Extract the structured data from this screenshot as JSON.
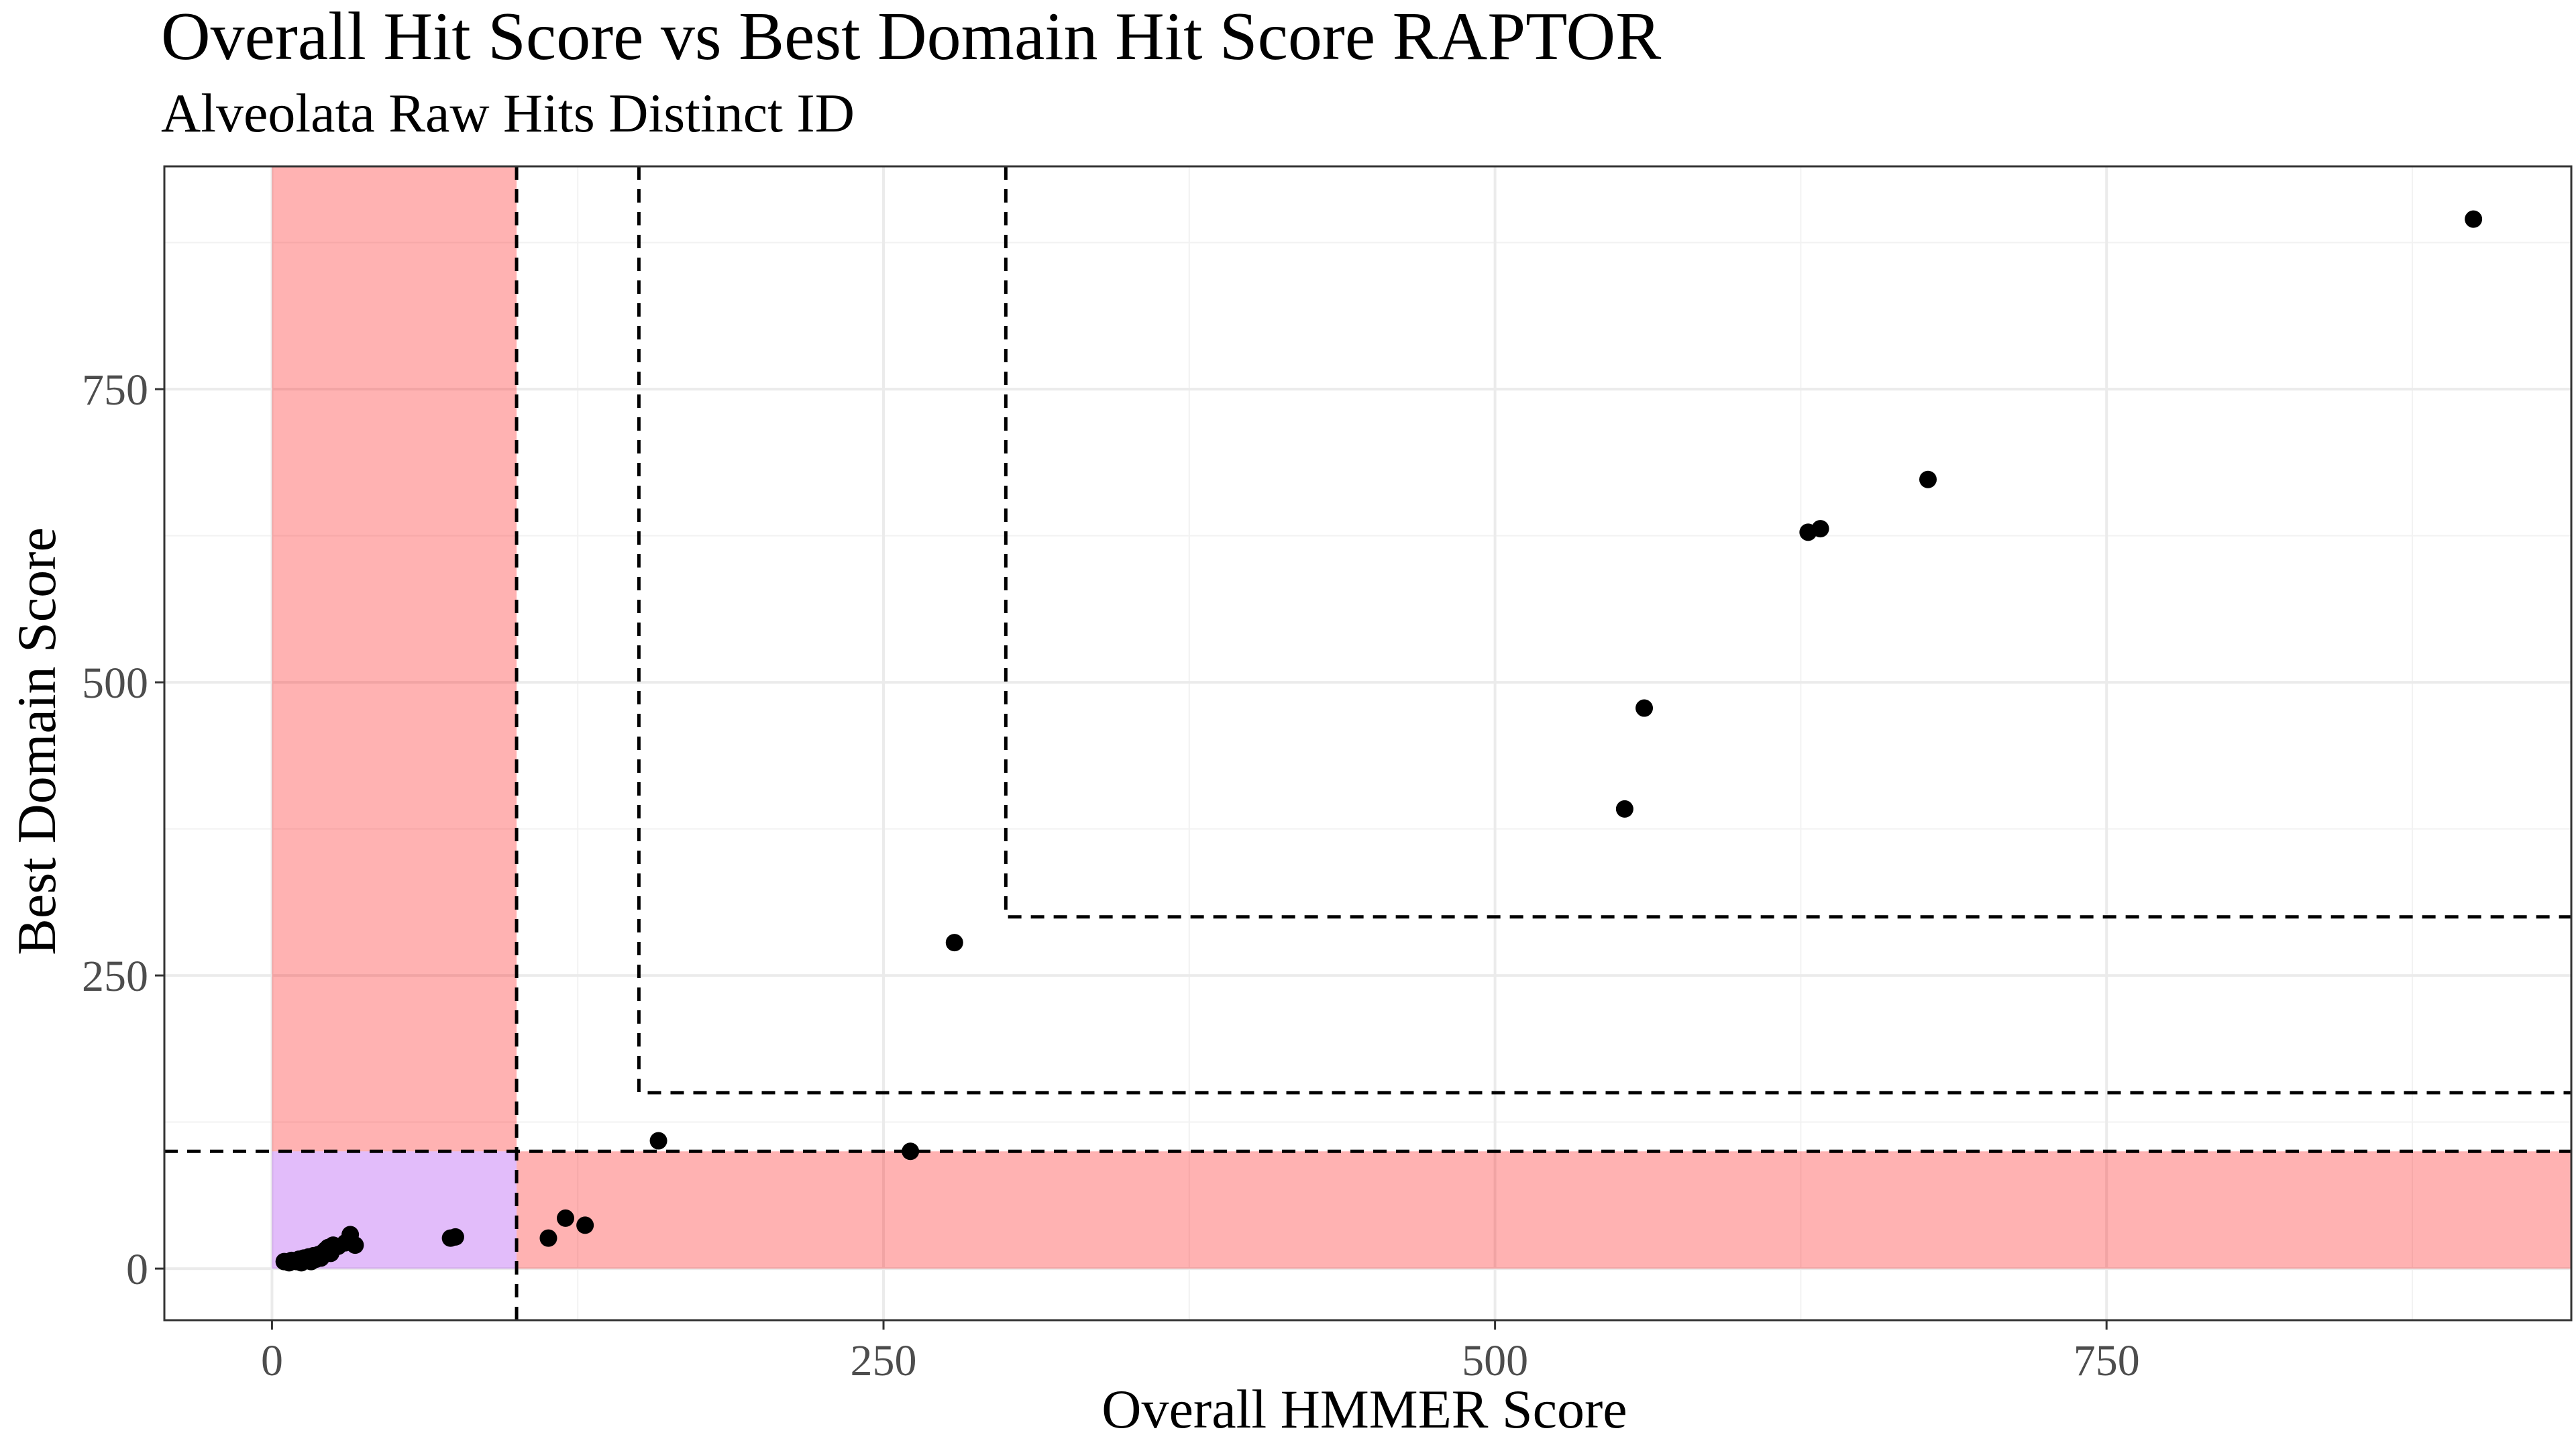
{
  "chart_data": {
    "type": "scatter",
    "title": "Overall Hit Score vs Best Domain Hit Score RAPTOR",
    "subtitle": "Alveolata Raw Hits Distinct ID",
    "xlabel": "Overall HMMER Score",
    "ylabel": "Best Domain Score",
    "xlim": [
      -44,
      940
    ],
    "ylim": [
      -44,
      940
    ],
    "x_ticks": [
      0,
      250,
      500,
      750
    ],
    "y_ticks": [
      0,
      250,
      500,
      750
    ],
    "x_tick_labels": [
      "0",
      "250",
      "500",
      "750"
    ],
    "y_tick_labels": [
      "0",
      "250",
      "500",
      "750"
    ],
    "grid": true,
    "point_color": "#000000",
    "shaded_regions": [
      {
        "x": [
          0,
          100
        ],
        "y": [
          100,
          940
        ],
        "color": "#ff0000",
        "opacity": 0.3
      },
      {
        "x": [
          100,
          940
        ],
        "y": [
          0,
          100
        ],
        "color": "#ff0000",
        "opacity": 0.3
      },
      {
        "x": [
          0,
          100
        ],
        "y": [
          0,
          100
        ],
        "color": "#a020f0",
        "opacity": 0.3
      }
    ],
    "threshold_lines": [
      {
        "type": "vertical",
        "x": 100,
        "style": "dashed"
      },
      {
        "type": "horizontal",
        "y": 100,
        "style": "dashed"
      },
      {
        "type": "corner",
        "x": 150,
        "y": 150,
        "style": "dashed"
      },
      {
        "type": "corner",
        "x": 300,
        "y": 300,
        "style": "dashed"
      }
    ],
    "points": [
      {
        "x": 5,
        "y": 6
      },
      {
        "x": 7,
        "y": 5
      },
      {
        "x": 8,
        "y": 7
      },
      {
        "x": 10,
        "y": 6
      },
      {
        "x": 11,
        "y": 8
      },
      {
        "x": 12,
        "y": 5
      },
      {
        "x": 13,
        "y": 9
      },
      {
        "x": 14,
        "y": 7
      },
      {
        "x": 15,
        "y": 10
      },
      {
        "x": 16,
        "y": 6
      },
      {
        "x": 17,
        "y": 11
      },
      {
        "x": 18,
        "y": 8
      },
      {
        "x": 19,
        "y": 12
      },
      {
        "x": 20,
        "y": 9
      },
      {
        "x": 21,
        "y": 14
      },
      {
        "x": 22,
        "y": 16
      },
      {
        "x": 23,
        "y": 18
      },
      {
        "x": 24,
        "y": 13
      },
      {
        "x": 25,
        "y": 20
      },
      {
        "x": 27,
        "y": 19
      },
      {
        "x": 30,
        "y": 22
      },
      {
        "x": 32,
        "y": 29
      },
      {
        "x": 34,
        "y": 20
      },
      {
        "x": 73,
        "y": 26
      },
      {
        "x": 75,
        "y": 27
      },
      {
        "x": 113,
        "y": 26
      },
      {
        "x": 120,
        "y": 43
      },
      {
        "x": 128,
        "y": 37
      },
      {
        "x": 158,
        "y": 109
      },
      {
        "x": 261,
        "y": 100
      },
      {
        "x": 279,
        "y": 278
      },
      {
        "x": 553,
        "y": 392
      },
      {
        "x": 561,
        "y": 478
      },
      {
        "x": 628,
        "y": 628
      },
      {
        "x": 633,
        "y": 631
      },
      {
        "x": 677,
        "y": 673
      },
      {
        "x": 900,
        "y": 895
      }
    ]
  }
}
